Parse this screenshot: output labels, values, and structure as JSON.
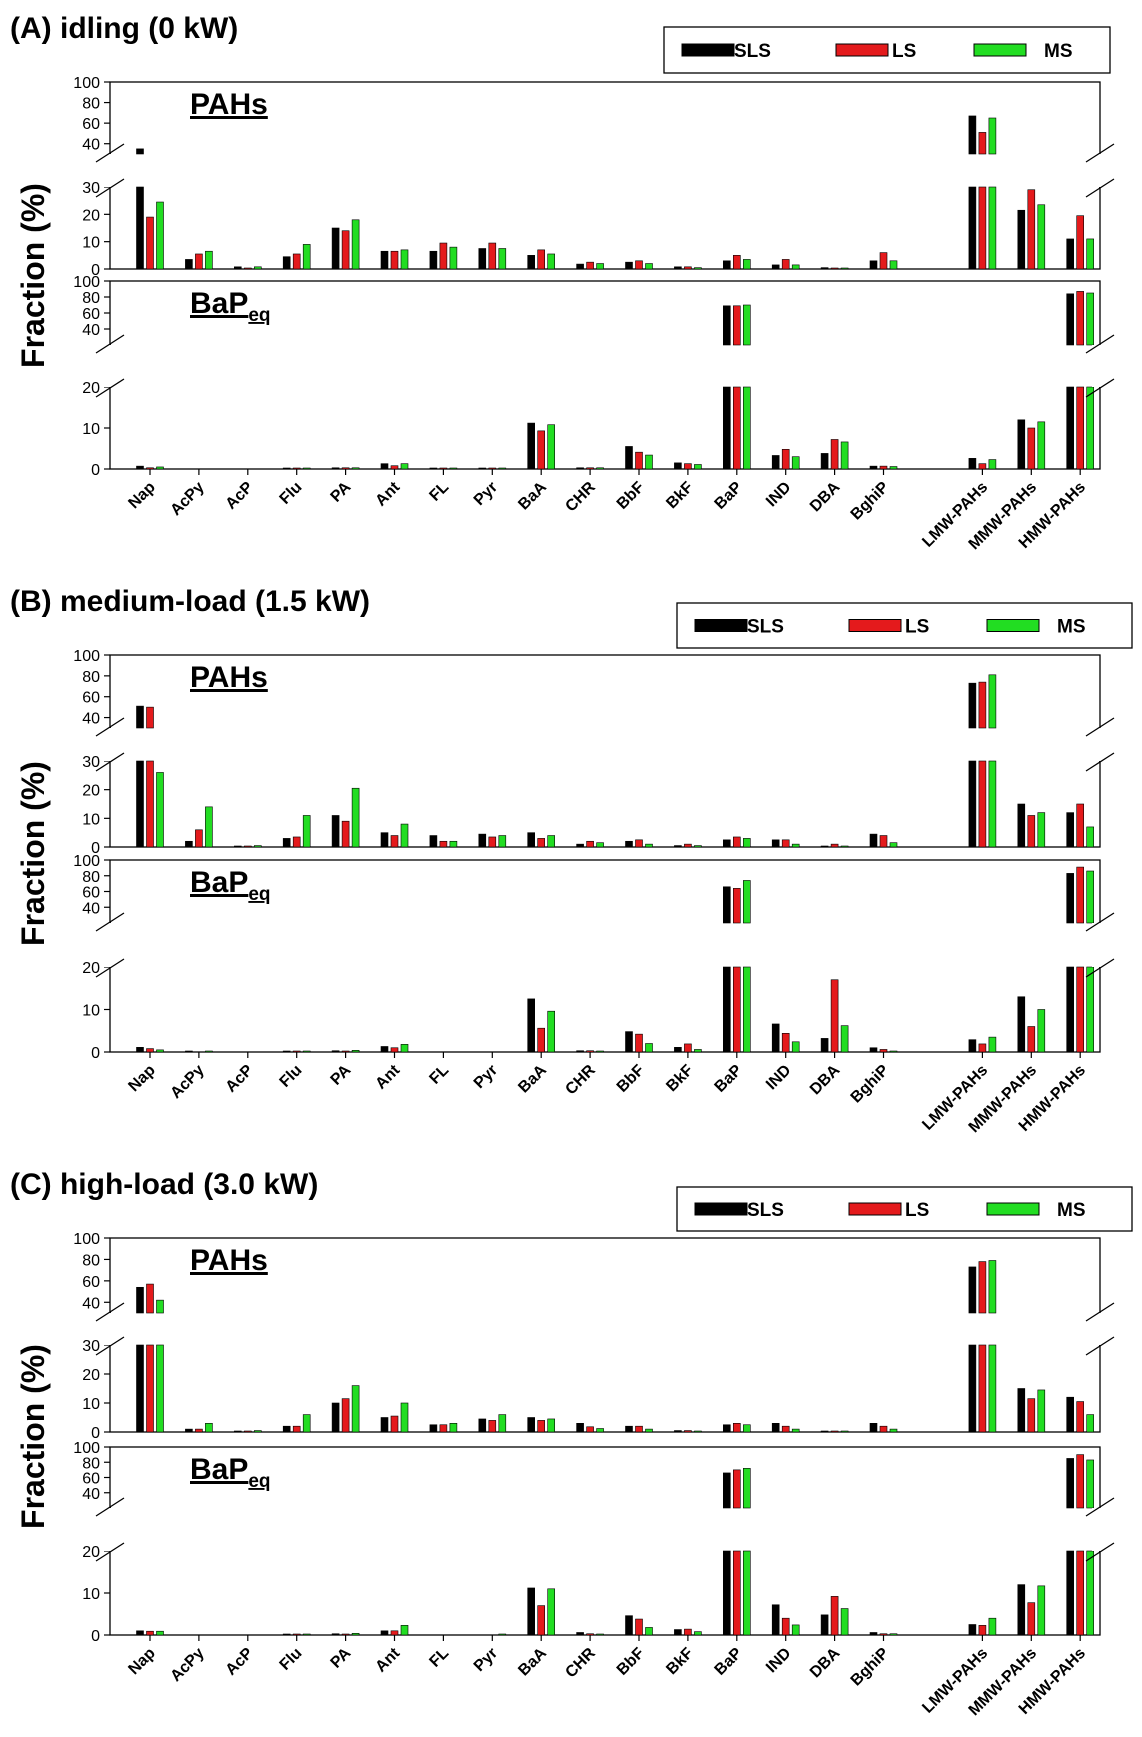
{
  "colors": {
    "SLS": "#000000",
    "LS": "#e41a1c",
    "MS": "#22dd22"
  },
  "chart_data": [
    {
      "type": "bar",
      "title": "(A) idling (0 kW)",
      "ylabel": "Fraction (%)",
      "categories": [
        "Nap",
        "AcPy",
        "AcP",
        "Flu",
        "PA",
        "Ant",
        "FL",
        "Pyr",
        "BaA",
        "CHR",
        "BbF",
        "BkF",
        "BaP",
        "IND",
        "DBA",
        "BghiP",
        "LMW-PAHs",
        "MMW-PAHs",
        "HMW-PAHs"
      ],
      "legend": [
        "SLS",
        "LS",
        "MS"
      ],
      "axis_break": {
        "lower": [
          0,
          30
        ],
        "upper": [
          30,
          100
        ]
      },
      "panels": [
        {
          "label": "PAHs",
          "label_sub": "",
          "ylim_lower": [
            0,
            30
          ],
          "yticks_lower": [
            "0",
            "10",
            "20",
            "30"
          ],
          "ylim_upper": [
            30,
            100
          ],
          "yticks_upper": [
            "40",
            "60",
            "80",
            "100"
          ],
          "series": [
            {
              "name": "SLS",
              "values": [
                35,
                3.5,
                0.8,
                4.5,
                15,
                6.5,
                6.5,
                7.5,
                5,
                1.8,
                2.5,
                0.8,
                3,
                1.5,
                0.5,
                3,
                67,
                21.5,
                11
              ]
            },
            {
              "name": "LS",
              "values": [
                19,
                5.5,
                0.3,
                5.5,
                14,
                6.5,
                9.5,
                9.5,
                7,
                2.5,
                3,
                0.8,
                5,
                3.5,
                0.3,
                6,
                51,
                29,
                19.5
              ]
            },
            {
              "name": "MS",
              "values": [
                24.5,
                6.5,
                0.8,
                9,
                18,
                7,
                8,
                7.5,
                5.5,
                2,
                2,
                0.5,
                3.5,
                1.5,
                0.2,
                3,
                65,
                23.5,
                11
              ]
            }
          ]
        },
        {
          "label": "BaP",
          "label_sub": "eq",
          "ylim_lower": [
            0,
            20
          ],
          "yticks_lower": [
            "0",
            "10",
            "20"
          ],
          "ylim_upper": [
            20,
            100
          ],
          "yticks_upper": [
            "40",
            "60",
            "80",
            "100"
          ],
          "series": [
            {
              "name": "SLS",
              "values": [
                0.7,
                0,
                0,
                0.1,
                0.3,
                1.3,
                0.1,
                0.2,
                11.2,
                0.3,
                5.5,
                1.5,
                69,
                3.3,
                3.8,
                0.7,
                2.6,
                12,
                84
              ]
            },
            {
              "name": "LS",
              "values": [
                0.3,
                0,
                0,
                0.1,
                0.3,
                0.8,
                0.1,
                0.2,
                9.3,
                0.3,
                4.1,
                1.3,
                69,
                4.8,
                7.2,
                0.7,
                1.3,
                10,
                87
              ]
            },
            {
              "name": "MS",
              "values": [
                0.5,
                0,
                0,
                0.1,
                0.3,
                1.3,
                0.1,
                0.2,
                10.8,
                0.3,
                3.4,
                1.1,
                70,
                3,
                6.6,
                0.6,
                2.3,
                11.5,
                85
              ]
            }
          ]
        }
      ]
    },
    {
      "type": "bar",
      "title": "(B) medium-load (1.5 kW)",
      "ylabel": "Fraction (%)",
      "categories": [
        "Nap",
        "AcPy",
        "AcP",
        "Flu",
        "PA",
        "Ant",
        "FL",
        "Pyr",
        "BaA",
        "CHR",
        "BbF",
        "BkF",
        "BaP",
        "IND",
        "DBA",
        "BghiP",
        "LMW-PAHs",
        "MMW-PAHs",
        "HMW-PAHs"
      ],
      "legend": [
        "SLS",
        "LS",
        "MS"
      ],
      "axis_break": {
        "lower": [
          0,
          30
        ],
        "upper": [
          30,
          100
        ]
      },
      "panels": [
        {
          "label": "PAHs",
          "label_sub": "",
          "ylim_lower": [
            0,
            30
          ],
          "yticks_lower": [
            "0",
            "10",
            "20",
            "30"
          ],
          "ylim_upper": [
            30,
            100
          ],
          "yticks_upper": [
            "40",
            "60",
            "80",
            "100"
          ],
          "series": [
            {
              "name": "SLS",
              "values": [
                51,
                2,
                0.3,
                3,
                11,
                5,
                4,
                4.5,
                5,
                1,
                2,
                0.5,
                2.5,
                2.5,
                0.2,
                4.5,
                73,
                15,
                12
              ]
            },
            {
              "name": "LS",
              "values": [
                50,
                6,
                0.3,
                3.5,
                9,
                4,
                2,
                3.5,
                3,
                2,
                2.5,
                1,
                3.5,
                2.5,
                1,
                4,
                74,
                11,
                15
              ]
            },
            {
              "name": "MS",
              "values": [
                26,
                14,
                0.5,
                11,
                20.5,
                8,
                2,
                4,
                4,
                1.5,
                1,
                0.5,
                3,
                1,
                0.2,
                1.5,
                81,
                12,
                7
              ]
            }
          ]
        },
        {
          "label": "BaP",
          "label_sub": "eq",
          "ylim_lower": [
            0,
            20
          ],
          "yticks_lower": [
            "0",
            "10",
            "20"
          ],
          "ylim_upper": [
            20,
            100
          ],
          "yticks_upper": [
            "40",
            "60",
            "80",
            "100"
          ],
          "series": [
            {
              "name": "SLS",
              "values": [
                1.1,
                0.1,
                0,
                0.1,
                0.3,
                1.3,
                0,
                0,
                12.5,
                0.3,
                4.8,
                1.1,
                66,
                6.6,
                3.2,
                1,
                2.9,
                13,
                83
              ]
            },
            {
              "name": "LS",
              "values": [
                0.8,
                0,
                0,
                0.1,
                0.2,
                1,
                0,
                0,
                5.6,
                0.3,
                4.2,
                1.9,
                64,
                4.4,
                17,
                0.6,
                1.9,
                6,
                91
              ]
            },
            {
              "name": "MS",
              "values": [
                0.5,
                0.2,
                0,
                0.1,
                0.4,
                1.8,
                0,
                0,
                9.6,
                0.2,
                2,
                0.6,
                74,
                2.4,
                6.2,
                0.2,
                3.5,
                10,
                86
              ]
            }
          ]
        }
      ]
    },
    {
      "type": "bar",
      "title": "(C) high-load (3.0 kW)",
      "ylabel": "Fraction (%)",
      "categories": [
        "Nap",
        "AcPy",
        "AcP",
        "Flu",
        "PA",
        "Ant",
        "FL",
        "Pyr",
        "BaA",
        "CHR",
        "BbF",
        "BkF",
        "BaP",
        "IND",
        "DBA",
        "BghiP",
        "LMW-PAHs",
        "MMW-PAHs",
        "HMW-PAHs"
      ],
      "legend": [
        "SLS",
        "LS",
        "MS"
      ],
      "axis_break": {
        "lower": [
          0,
          30
        ],
        "upper": [
          30,
          100
        ]
      },
      "panels": [
        {
          "label": "PAHs",
          "label_sub": "",
          "ylim_lower": [
            0,
            30
          ],
          "yticks_lower": [
            "0",
            "10",
            "20",
            "30"
          ],
          "ylim_upper": [
            30,
            100
          ],
          "yticks_upper": [
            "40",
            "60",
            "80",
            "100"
          ],
          "series": [
            {
              "name": "SLS",
              "values": [
                54,
                1,
                0.2,
                2,
                10,
                5,
                2.5,
                4.5,
                5,
                3,
                2,
                0.5,
                2.5,
                3,
                0.2,
                3,
                73,
                15,
                12
              ]
            },
            {
              "name": "LS",
              "values": [
                57,
                1,
                0.2,
                2,
                11.5,
                5.5,
                2.5,
                4,
                4,
                1.8,
                2,
                0.5,
                3,
                2,
                0.2,
                2,
                78,
                11.5,
                10.5
              ]
            },
            {
              "name": "MS",
              "values": [
                42,
                3,
                0.5,
                6,
                16,
                10,
                3,
                6,
                4.5,
                1.2,
                1,
                0.3,
                2.5,
                1,
                0.3,
                1,
                79,
                14.5,
                6
              ]
            }
          ]
        },
        {
          "label": "BaP",
          "label_sub": "eq",
          "ylim_lower": [
            0,
            20
          ],
          "yticks_lower": [
            "0",
            "10",
            "20"
          ],
          "ylim_upper": [
            20,
            100
          ],
          "yticks_upper": [
            "40",
            "60",
            "80",
            "100"
          ],
          "series": [
            {
              "name": "SLS",
              "values": [
                1,
                0,
                0,
                0.1,
                0.3,
                1,
                0,
                0,
                11.2,
                0.6,
                4.6,
                1.3,
                66,
                7.2,
                4.8,
                0.6,
                2.5,
                12,
                85
              ]
            },
            {
              "name": "LS",
              "values": [
                0.9,
                0,
                0,
                0.1,
                0.2,
                1,
                0,
                0,
                7,
                0.3,
                3.8,
                1.4,
                70,
                4,
                9.2,
                0.3,
                2.3,
                7.7,
                90
              ]
            },
            {
              "name": "MS",
              "values": [
                0.9,
                0,
                0,
                0.2,
                0.4,
                2.3,
                0,
                0.1,
                11,
                0.2,
                1.8,
                0.8,
                72,
                2.4,
                6.3,
                0.3,
                4,
                11.7,
                83
              ]
            }
          ]
        }
      ]
    }
  ]
}
